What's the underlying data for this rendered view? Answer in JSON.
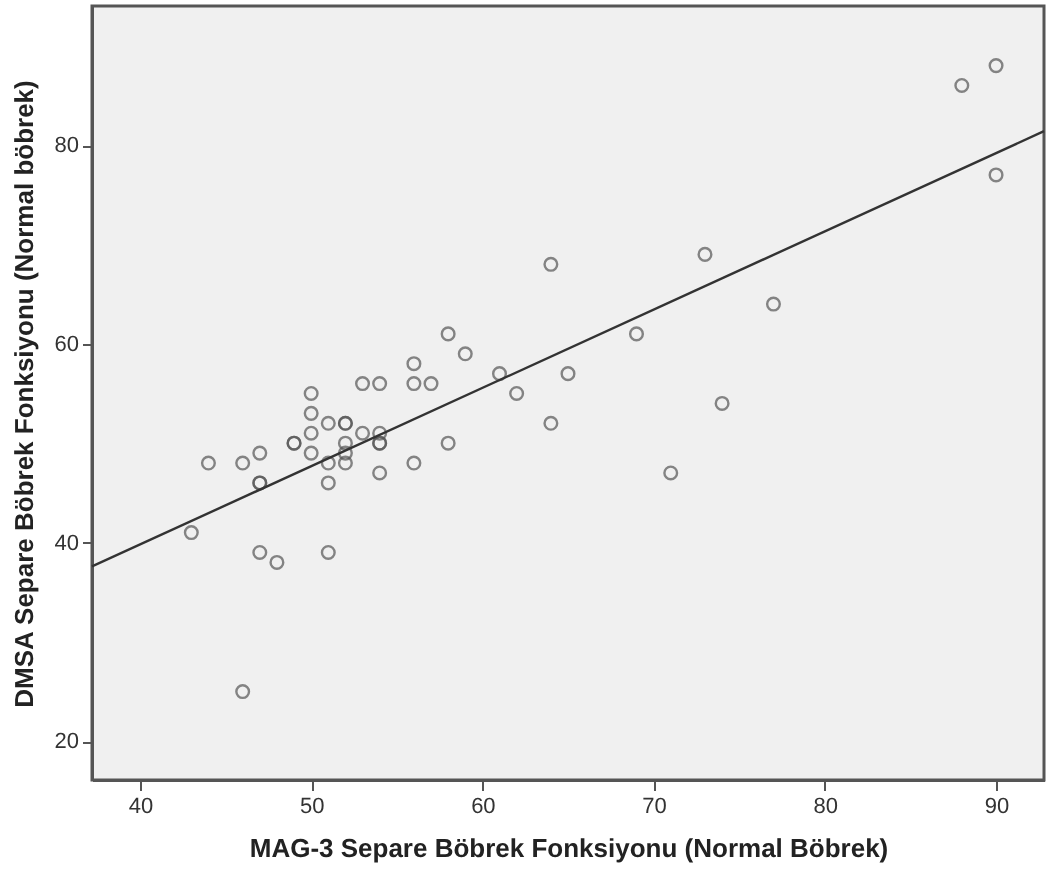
{
  "chart_data": {
    "type": "scatter",
    "xlabel": "MAG-3 Separe Böbrek Fonksiyonu (Normal Böbrek)",
    "ylabel": "DMSA Separe Böbrek Fonksiyonu (Normal böbrek)",
    "xlim": [
      37.2,
      92.8
    ],
    "ylim": [
      16.1,
      94
    ],
    "xticks": [
      40,
      50,
      60,
      70,
      80,
      90
    ],
    "yticks": [
      20,
      40,
      60,
      80
    ],
    "grid": false,
    "marker": "circle",
    "series": [
      {
        "color": "#555555",
        "x": [
          43,
          44,
          46,
          46,
          47,
          47,
          47,
          47,
          48,
          49,
          49,
          50,
          50,
          50,
          50,
          51,
          51,
          51,
          51,
          52,
          52,
          52,
          52,
          52,
          53,
          53,
          54,
          54,
          54,
          54,
          54,
          56,
          56,
          56,
          57,
          58,
          58,
          59,
          61,
          62,
          64,
          64,
          65,
          69,
          71,
          73,
          74,
          77,
          88,
          90,
          90
        ],
        "values": [
          41,
          48,
          48,
          25,
          49,
          46,
          46,
          39,
          38,
          50,
          50,
          55,
          53,
          51,
          49,
          52,
          48,
          46,
          39,
          52,
          52,
          50,
          49,
          48,
          56,
          51,
          56,
          51,
          50,
          50,
          47,
          58,
          56,
          48,
          56,
          61,
          50,
          59,
          57,
          55,
          68,
          52,
          57,
          61,
          47,
          69,
          54,
          64,
          86,
          88,
          77
        ]
      },
      {
        "type": "line",
        "color": "#333333",
        "line_style": "solid",
        "marker": "none",
        "x": [
          37.2,
          92.8
        ],
        "values": [
          37.6,
          81.4
        ]
      }
    ]
  }
}
